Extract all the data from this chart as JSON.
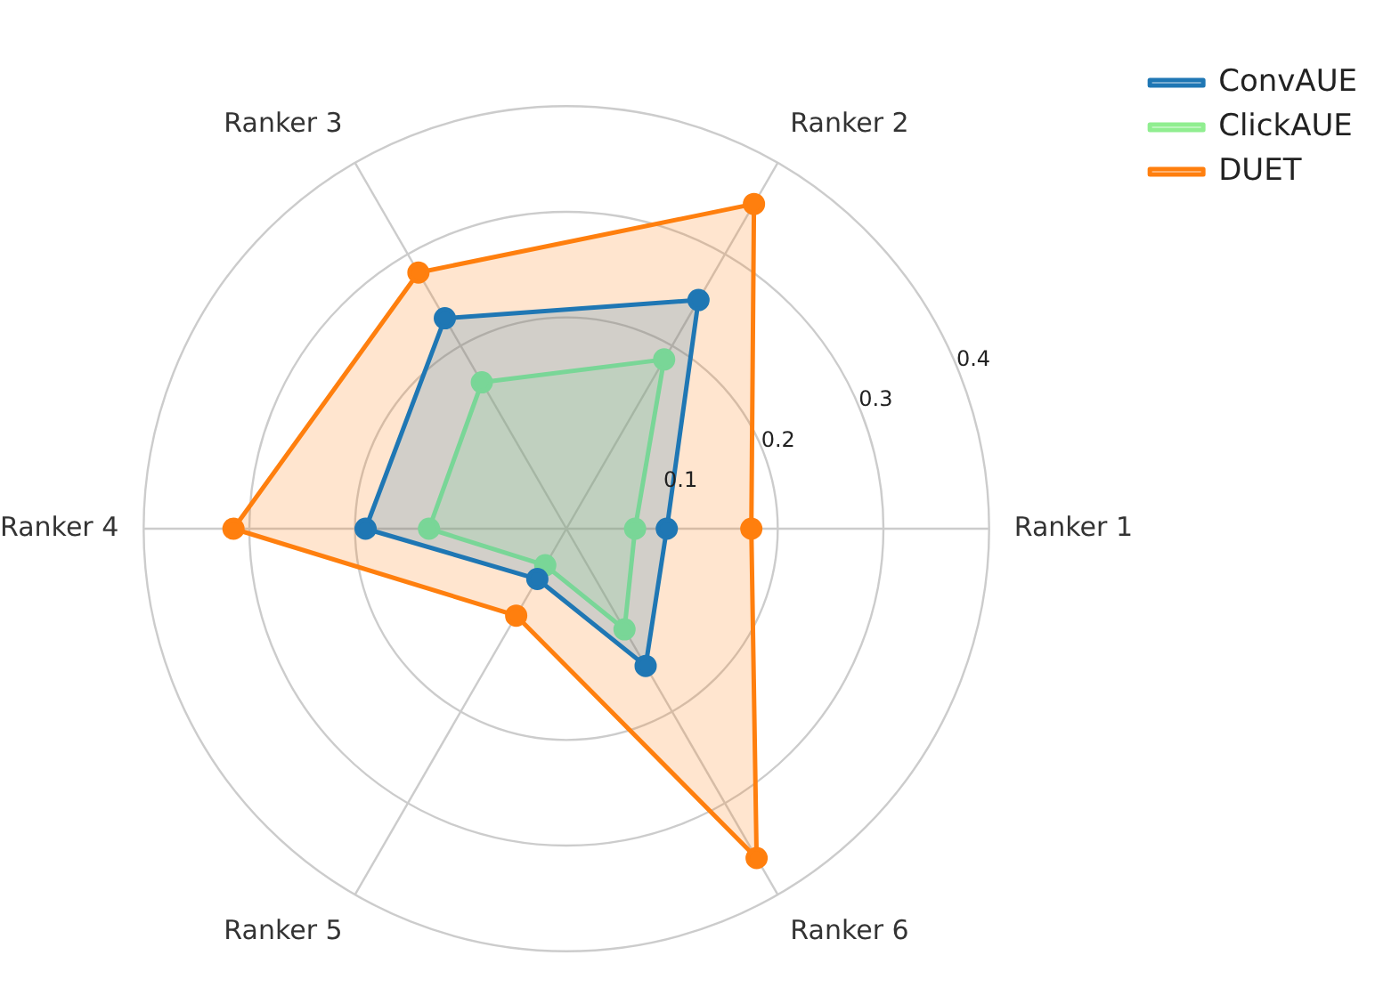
{
  "chart_data": {
    "type": "radar",
    "categories": [
      "Ranker 2",
      "Ranker 1",
      "Ranker 6",
      "Ranker 5",
      "Ranker 4",
      "Ranker 3"
    ],
    "series": [
      {
        "name": "ConvAUE",
        "color": "#1f77b4",
        "values": [
          0.25,
          0.095,
          0.15,
          0.055,
          0.19,
          0.23
        ]
      },
      {
        "name": "ClickAUE",
        "color": "#90ee90",
        "values": [
          0.185,
          0.065,
          0.11,
          0.04,
          0.13,
          0.16
        ]
      },
      {
        "name": "DUET",
        "color": "#ff7f0e",
        "values": [
          0.355,
          0.175,
          0.36,
          0.095,
          0.315,
          0.28
        ]
      }
    ],
    "ylim": [
      0,
      0.4
    ],
    "yticks": [
      0.1,
      0.2,
      0.3,
      0.4
    ],
    "grid": true,
    "legend": "top right",
    "marker": "circle",
    "line_style": "solid"
  }
}
